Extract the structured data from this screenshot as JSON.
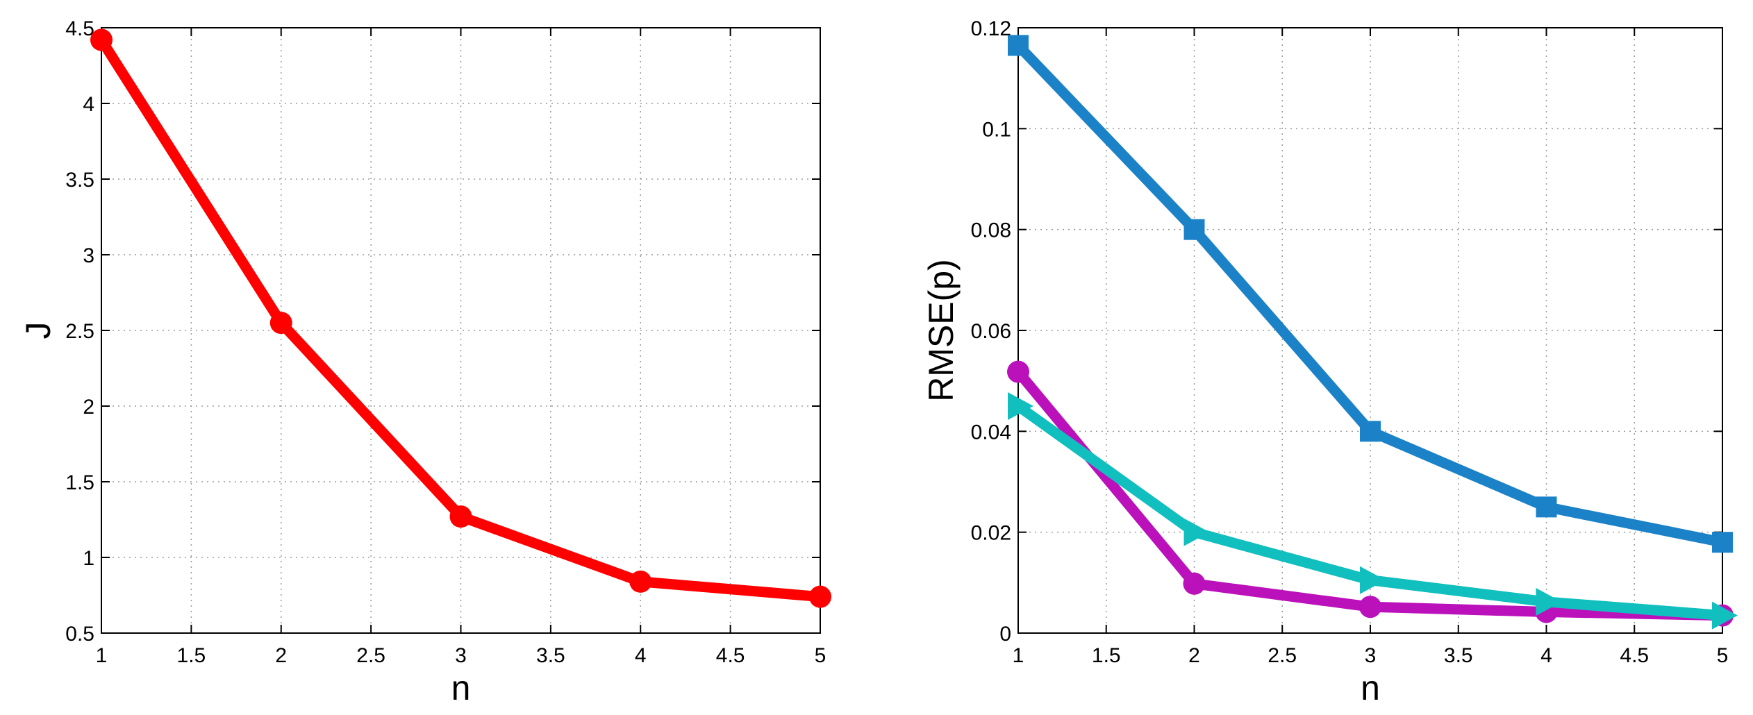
{
  "chart_data": [
    {
      "type": "line",
      "title": "",
      "xlabel": "n",
      "ylabel": "J",
      "xlim": [
        1,
        5
      ],
      "ylim": [
        0.5,
        4.5
      ],
      "xticks": [
        1,
        1.5,
        2,
        2.5,
        3,
        3.5,
        4,
        4.5,
        5
      ],
      "xtick_labels": [
        "1",
        "1.5",
        "2",
        "2.5",
        "3",
        "3.5",
        "4",
        "4.5",
        "5"
      ],
      "yticks": [
        0.5,
        1,
        1.5,
        2,
        2.5,
        3,
        3.5,
        4,
        4.5
      ],
      "ytick_labels": [
        "0.5",
        "1",
        "1.5",
        "2",
        "2.5",
        "3",
        "3.5",
        "4",
        "4.5"
      ],
      "grid": true,
      "x": [
        1,
        2,
        3,
        4,
        5
      ],
      "series": [
        {
          "name": "J",
          "color": "#ff0000",
          "marker": "circle",
          "values": [
            4.42,
            2.55,
            1.27,
            0.84,
            0.74
          ]
        }
      ]
    },
    {
      "type": "line",
      "title": "",
      "xlabel": "n",
      "ylabel": "RMSE(p)",
      "xlim": [
        1,
        5
      ],
      "ylim": [
        0,
        0.12
      ],
      "xticks": [
        1,
        1.5,
        2,
        2.5,
        3,
        3.5,
        4,
        4.5,
        5
      ],
      "xtick_labels": [
        "1",
        "1.5",
        "2",
        "2.5",
        "3",
        "3.5",
        "4",
        "4.5",
        "5"
      ],
      "yticks": [
        0,
        0.02,
        0.04,
        0.06,
        0.08,
        0.1,
        0.12
      ],
      "ytick_labels": [
        "0",
        "0.02",
        "0.04",
        "0.06",
        "0.08",
        "0.1",
        "0.12"
      ],
      "grid": true,
      "x": [
        1,
        2,
        3,
        4,
        5
      ],
      "series": [
        {
          "name": "square series",
          "color": "#1b82c8",
          "marker": "square",
          "values": [
            0.1165,
            0.08,
            0.04,
            0.025,
            0.018
          ]
        },
        {
          "name": "circle series",
          "color": "#bb11bb",
          "marker": "circle",
          "values": [
            0.0518,
            0.0098,
            0.0052,
            0.0042,
            0.0035
          ]
        },
        {
          "name": "triangle series",
          "color": "#11bfbf",
          "marker": "triangle-right",
          "values": [
            0.045,
            0.02,
            0.0105,
            0.0062,
            0.0035
          ]
        }
      ]
    }
  ]
}
